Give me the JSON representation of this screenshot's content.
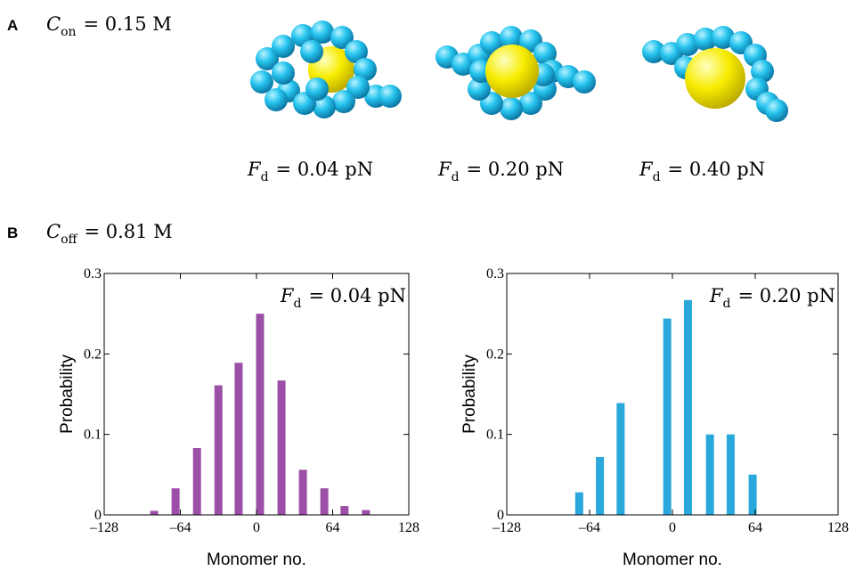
{
  "panel_a": {
    "label": "A",
    "condition": {
      "symbol": "C",
      "subscript": "on",
      "text": "= 0.15 M"
    },
    "snapshots": [
      {
        "symbol": "F",
        "subscript": "d",
        "text": "= 0.04 pN"
      },
      {
        "symbol": "F",
        "subscript": "d",
        "text": "= 0.20 pN"
      },
      {
        "symbol": "F",
        "subscript": "d",
        "text": "= 0.40 pN"
      }
    ]
  },
  "panel_b": {
    "label": "B",
    "condition": {
      "symbol": "C",
      "subscript": "off",
      "text": "= 0.81 M"
    }
  },
  "chart_data": [
    {
      "type": "bar",
      "xlabel": "Monomer no.",
      "ylabel": "Probability",
      "annotation": {
        "symbol": "F",
        "subscript": "d",
        "text": "= 0.04 pN"
      },
      "x": [
        -86,
        -68,
        -50,
        -32,
        -15,
        3,
        21,
        39,
        57,
        74,
        92
      ],
      "values": [
        0.005,
        0.033,
        0.083,
        0.161,
        0.189,
        0.25,
        0.167,
        0.056,
        0.033,
        0.011,
        0.006
      ],
      "color": "#9b4fa6",
      "xlim": [
        -128,
        128
      ],
      "xticks": [
        {
          "value": -128,
          "label": "–128"
        },
        {
          "value": -64,
          "label": "–64"
        },
        0,
        64,
        128
      ],
      "ylim": [
        0,
        0.3
      ],
      "yticks": [
        0,
        0.1,
        0.2,
        0.3
      ]
    },
    {
      "type": "bar",
      "xlabel": "Monomer no.",
      "ylabel": "Probability",
      "annotation": {
        "symbol": "F",
        "subscript": "d",
        "text": "= 0.20 pN"
      },
      "x": [
        -72,
        -56,
        -40,
        -4,
        12,
        29,
        45,
        62
      ],
      "values": [
        0.028,
        0.072,
        0.139,
        0.244,
        0.267,
        0.1,
        0.1,
        0.05
      ],
      "color": "#29a8dc",
      "xlim": [
        -128,
        128
      ],
      "xticks": [
        {
          "value": -128,
          "label": "–128"
        },
        {
          "value": -64,
          "label": "–64"
        },
        0,
        64,
        128
      ],
      "ylim": [
        0,
        0.3
      ],
      "yticks": [
        0,
        0.1,
        0.2,
        0.3
      ]
    }
  ]
}
